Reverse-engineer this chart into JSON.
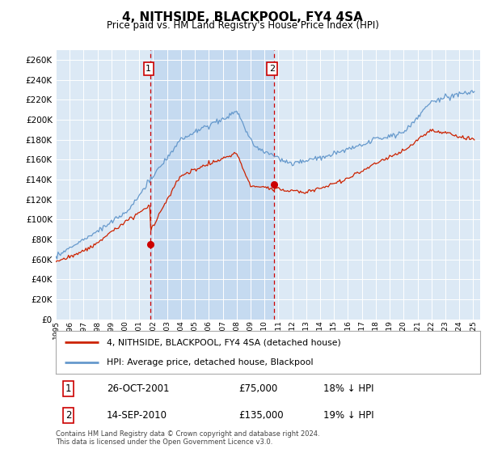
{
  "title": "4, NITHSIDE, BLACKPOOL, FY4 4SA",
  "subtitle": "Price paid vs. HM Land Registry's House Price Index (HPI)",
  "ylim": [
    0,
    270000
  ],
  "yticks": [
    0,
    20000,
    40000,
    60000,
    80000,
    100000,
    120000,
    140000,
    160000,
    180000,
    200000,
    220000,
    240000,
    260000
  ],
  "plot_bg": "#dce9f5",
  "shade_bg": "#c5daf0",
  "grid_color": "#ffffff",
  "sale1_x": 2001.82,
  "sale1_price": 75000,
  "sale2_x": 2010.71,
  "sale2_price": 135000,
  "legend_entries": [
    "4, NITHSIDE, BLACKPOOL, FY4 4SA (detached house)",
    "HPI: Average price, detached house, Blackpool"
  ],
  "footnote": "Contains HM Land Registry data © Crown copyright and database right 2024.\nThis data is licensed under the Open Government Licence v3.0.",
  "hpi_color": "#6699cc",
  "price_color": "#cc2200",
  "vline_color": "#cc0000",
  "marker_color": "#cc0000",
  "xlim_start": 1995,
  "xlim_end": 2025.5
}
